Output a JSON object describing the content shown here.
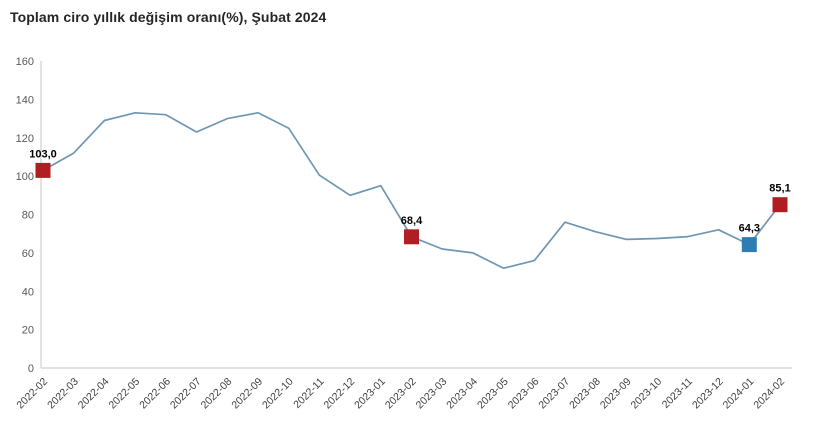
{
  "title": "Toplam ciro yıllık değişim oranı(%), Şubat 2024",
  "colors": {
    "background": "#ffffff",
    "line": "#6e96b4",
    "marker_red": "#b01e23",
    "marker_blue": "#2d7db4",
    "axis": "#d9d9d9",
    "tick_label": "#595959",
    "title": "#262626",
    "data_label": "#000000"
  },
  "chart_data": {
    "type": "line",
    "title": "Toplam ciro yıllık değişim oranı(%), Şubat 2024",
    "xlabel": "",
    "ylabel": "",
    "ylim": [
      0,
      160
    ],
    "ytick_step": 20,
    "grid": false,
    "legend": "none",
    "x": [
      "2022-02",
      "2022-03",
      "2022-04",
      "2022-05",
      "2022-06",
      "2022-07",
      "2022-08",
      "2022-09",
      "2022-10",
      "2022-11",
      "2022-12",
      "2023-01",
      "2023-02",
      "2023-03",
      "2023-04",
      "2023-05",
      "2023-06",
      "2023-07",
      "2023-08",
      "2023-09",
      "2023-10",
      "2023-11",
      "2023-12",
      "2024-01",
      "2024-02"
    ],
    "values": [
      103.0,
      112,
      129,
      133,
      132,
      123,
      130,
      133,
      125,
      100.5,
      90,
      95,
      68.4,
      62,
      60,
      52,
      56,
      76,
      71,
      67,
      67.5,
      68.5,
      72,
      64.3,
      85.1
    ],
    "annotations": [
      {
        "month": "2022-02",
        "label": "103,0",
        "value": 103.0,
        "color_key": "marker_red"
      },
      {
        "month": "2023-02",
        "label": "68,4",
        "value": 68.4,
        "color_key": "marker_red"
      },
      {
        "month": "2024-01",
        "label": "64,3",
        "value": 64.3,
        "color_key": "marker_blue"
      },
      {
        "month": "2024-02",
        "label": "85,1",
        "value": 85.1,
        "color_key": "marker_red"
      }
    ]
  }
}
